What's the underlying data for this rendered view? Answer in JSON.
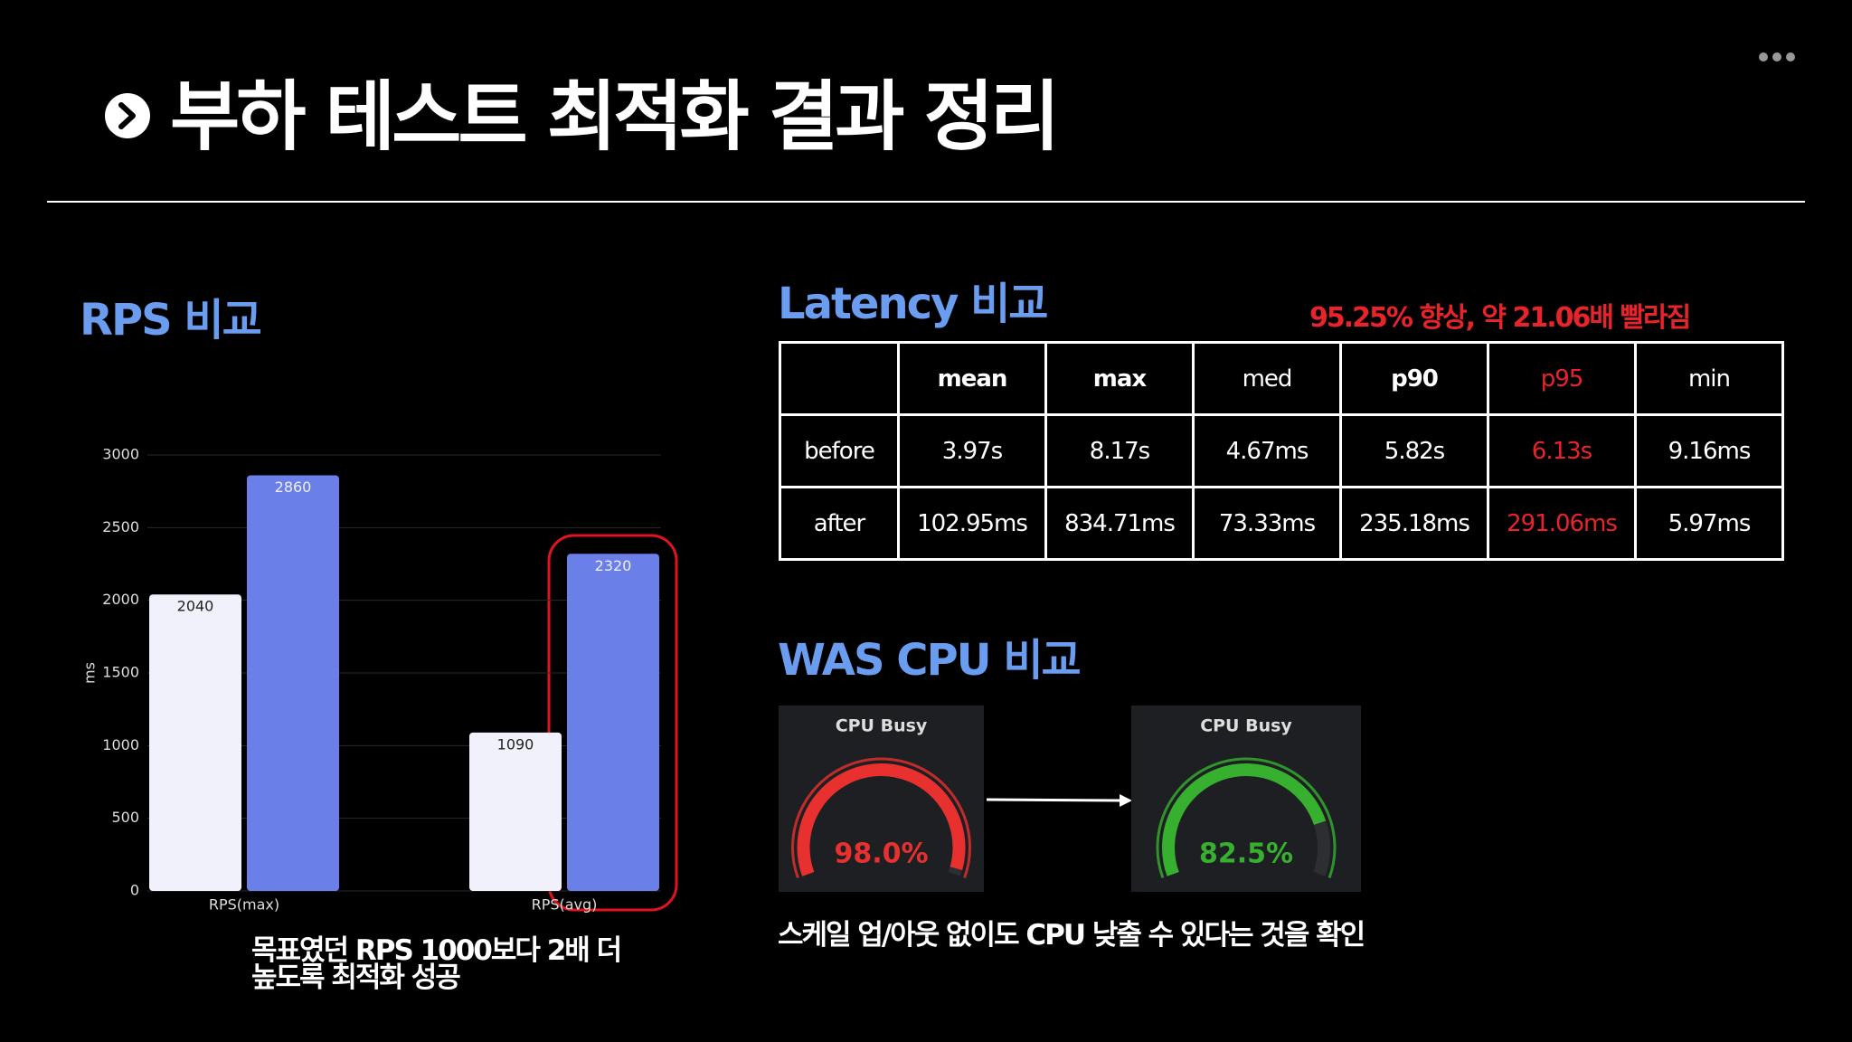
{
  "header": {
    "title": "부하 테스트 최적화 결과 정리"
  },
  "rps": {
    "heading": "RPS 비교",
    "caption": "목표였던 RPS 1000보다 2배 더 높도록 최적화 성공"
  },
  "chart_data": {
    "type": "bar",
    "y_label": "ms",
    "categories": [
      "RPS(max)",
      "RPS(avg)"
    ],
    "series": [
      {
        "color": "#f1f1fb",
        "values": [
          2040,
          1090
        ]
      },
      {
        "color": "#6a80e8",
        "values": [
          2860,
          2320
        ]
      }
    ],
    "ylim": [
      0,
      3000
    ],
    "yticks": [
      0,
      500,
      1000,
      1500,
      2000,
      2500,
      3000
    ],
    "grid": true
  },
  "latency": {
    "heading": "Latency 비교",
    "note": "95.25% 향상, 약 21.06배 빨라짐"
  },
  "table": {
    "columns": [
      "mean",
      "max",
      "med",
      "p90",
      "p95",
      "min"
    ],
    "highlight_color": "#e8242a",
    "rows": [
      {
        "label": "before",
        "cells": [
          "3.97s",
          "8.17s",
          "4.67ms",
          "5.82s",
          "6.13s",
          "9.16ms"
        ]
      },
      {
        "label": "after",
        "cells": [
          "102.95ms",
          "834.71ms",
          "73.33ms",
          "235.18ms",
          "291.06ms",
          "5.97ms"
        ]
      }
    ]
  },
  "cpu": {
    "heading": "WAS CPU 비교",
    "caption": "스케일 업/아웃 없이도 CPU 낮출 수 있다는 것을 확인",
    "gauges": [
      {
        "title": "CPU Busy",
        "value": 98.0,
        "value_label": "98.0%",
        "color": "#e8302e",
        "lim": [
          0,
          100
        ]
      },
      {
        "title": "CPU Busy",
        "value": 82.5,
        "value_label": "82.5%",
        "color": "#37b030",
        "lim": [
          0,
          100
        ]
      }
    ]
  }
}
